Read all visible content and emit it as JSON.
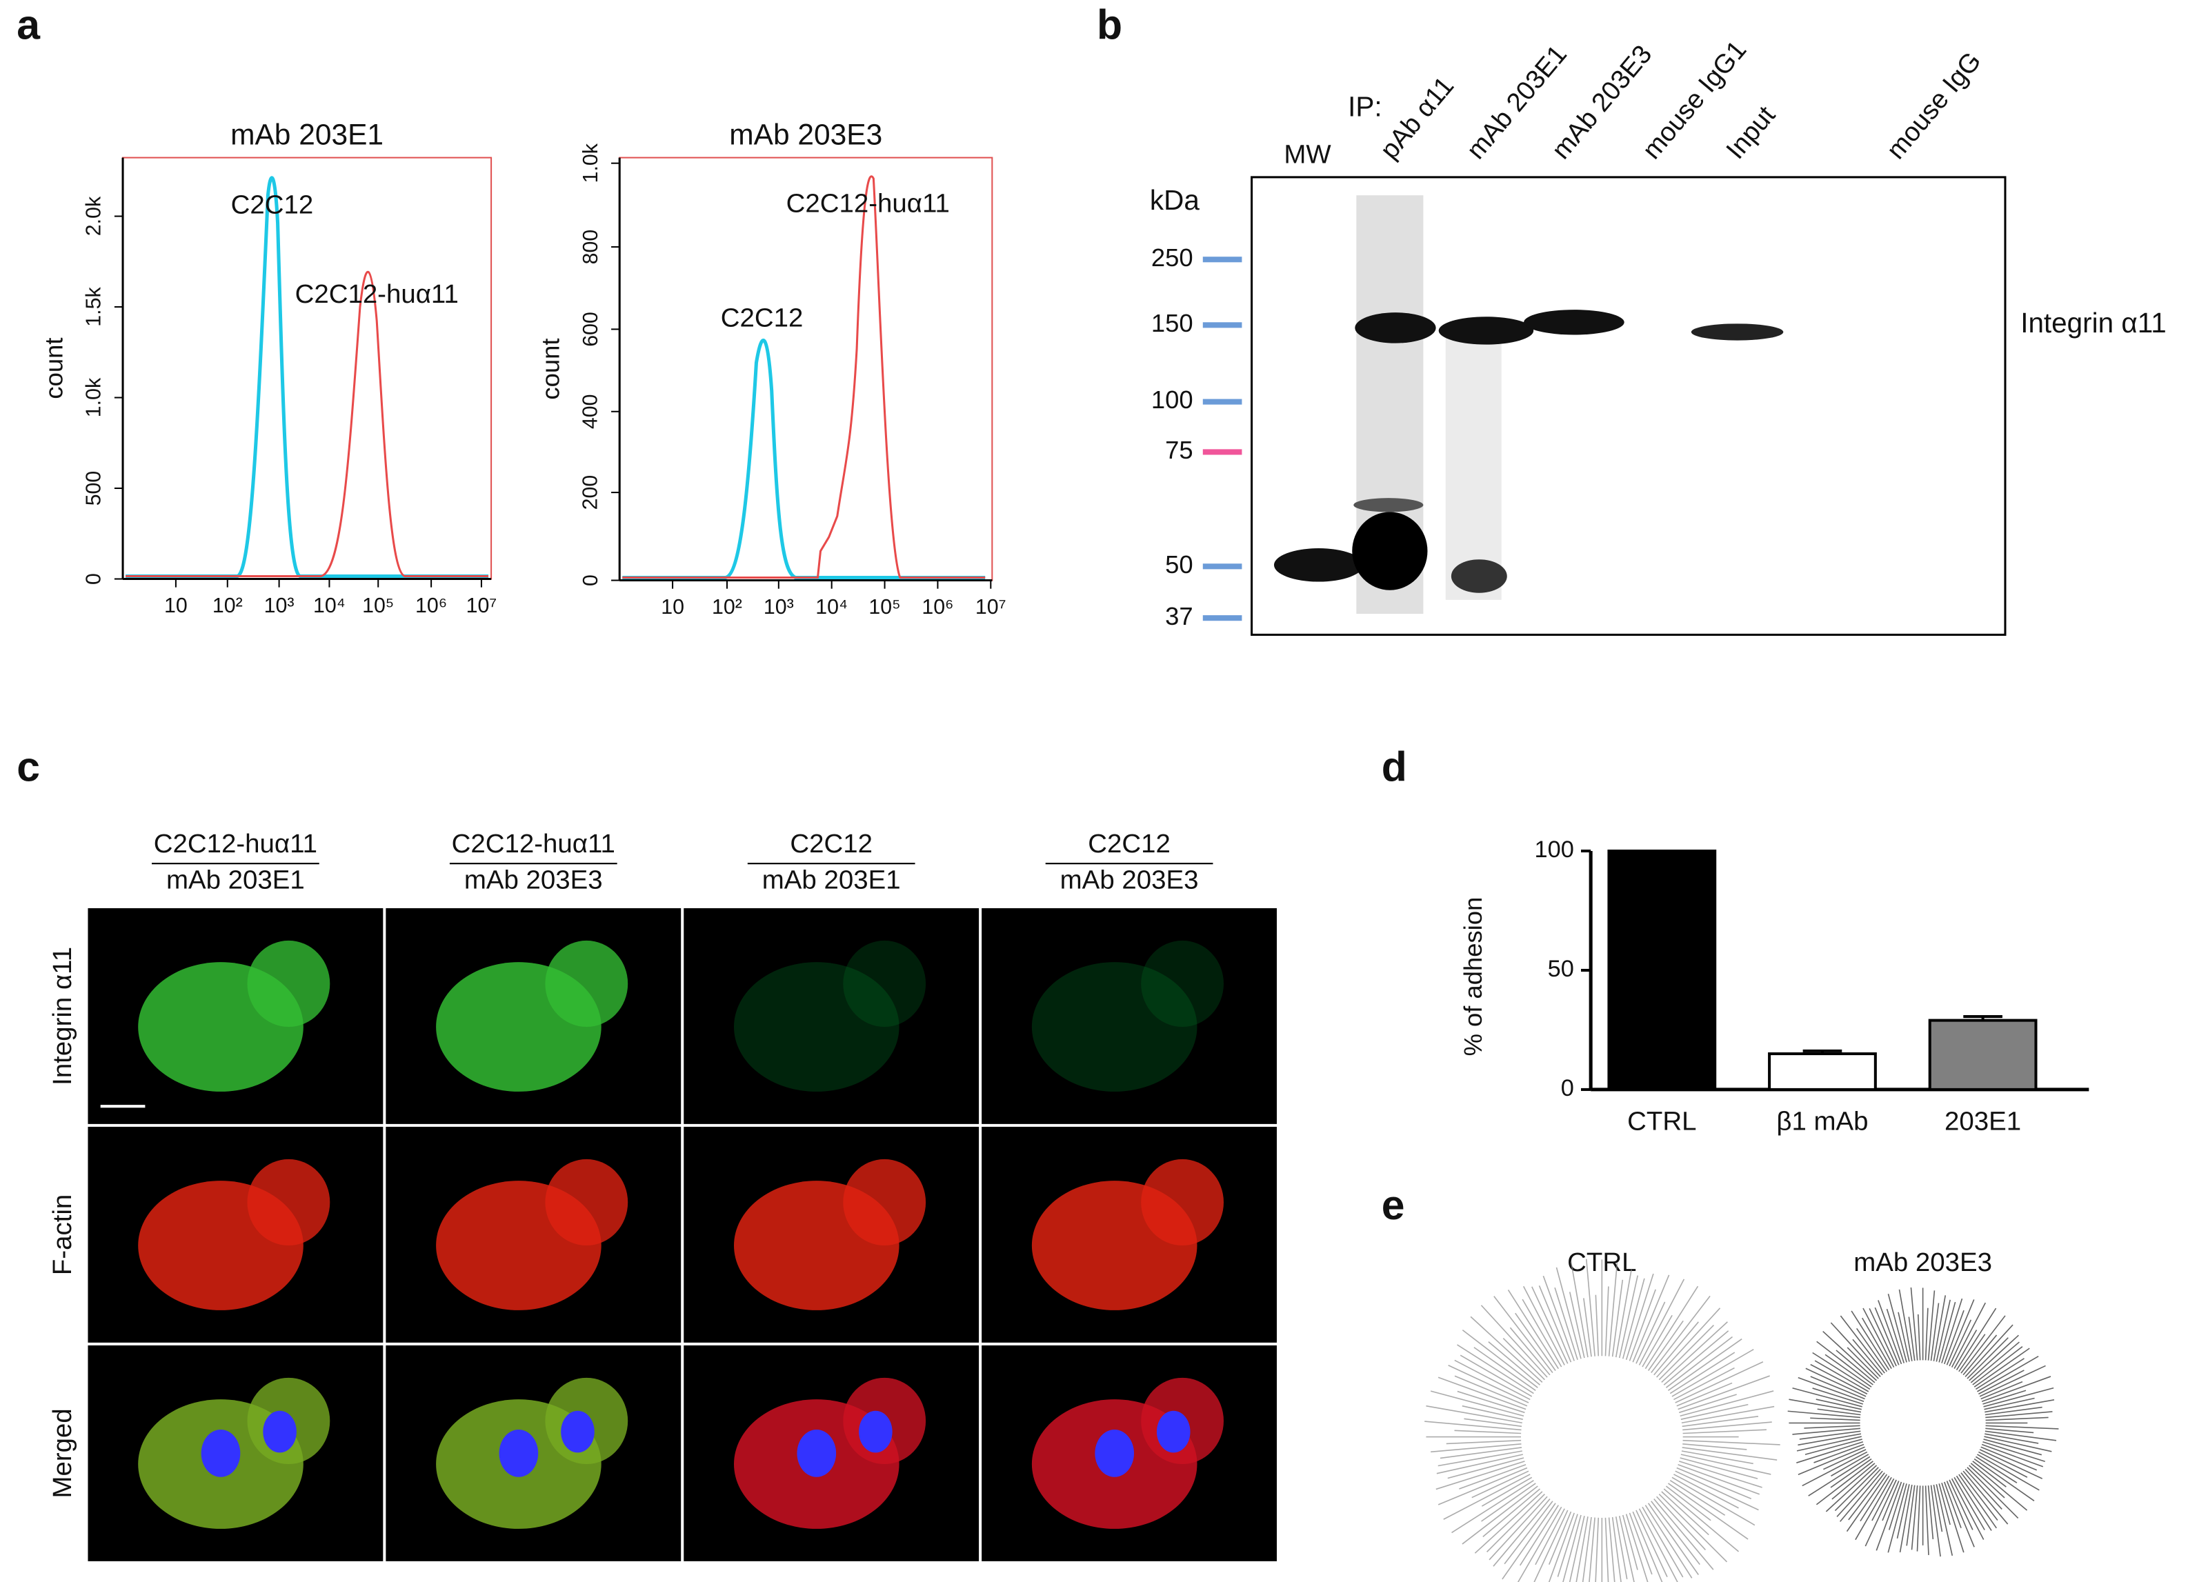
{
  "panels": {
    "a": {
      "label": "a",
      "plots": [
        {
          "title": "mAb 203E1",
          "ylabel": "count",
          "yticks": [
            "0",
            "500",
            "1.0k",
            "1.5k",
            "2.0k"
          ],
          "xticks": [
            "10",
            "10²",
            "10³",
            "10⁴",
            "10⁵",
            "10⁶",
            "10⁷"
          ],
          "annotations": [
            "C2C12",
            "C2C12-huα11"
          ]
        },
        {
          "title": "mAb 203E3",
          "ylabel": "count",
          "yticks": [
            "0",
            "200",
            "400",
            "600",
            "800",
            "1.0k"
          ],
          "xticks": [
            "10",
            "10²",
            "10³",
            "10⁴",
            "10⁵",
            "10⁶",
            "10⁷"
          ],
          "annotations": [
            "C2C12",
            "C2C12-huα11"
          ]
        }
      ]
    },
    "b": {
      "label": "b",
      "ip_label": "IP:",
      "lanes": [
        "MW",
        "pAb α11",
        "mAb 203E1",
        "mAb 203E3",
        "mouse IgG1",
        "Input",
        "mouse IgG"
      ],
      "unit": "kDa",
      "markers": [
        "250",
        "150",
        "100",
        "75",
        "50",
        "37"
      ],
      "band_label": "Integrin α11"
    },
    "c": {
      "label": "c",
      "columns": [
        {
          "top": "C2C12-huα11",
          "bottom": "mAb 203E1"
        },
        {
          "top": "C2C12-huα11",
          "bottom": "mAb 203E3"
        },
        {
          "top": "C2C12",
          "bottom": "mAb 203E1"
        },
        {
          "top": "C2C12",
          "bottom": "mAb 203E3"
        }
      ],
      "rows": [
        "Integrin α11",
        "F-actin",
        "Merged"
      ]
    },
    "d": {
      "label": "d"
    },
    "e": {
      "label": "e",
      "conditions": [
        "CTRL",
        "mAb 203E3"
      ]
    }
  },
  "chart_data": {
    "type": "bar",
    "ylabel": "% of adhesion",
    "categories": [
      "CTRL",
      "β1 mAb",
      "203E1"
    ],
    "values": [
      100,
      15,
      29
    ],
    "errors": [
      0,
      1.2,
      1.6
    ],
    "colors": [
      "#000000",
      "#ffffff",
      "#808080"
    ],
    "ylim": [
      0,
      100
    ],
    "yticks": [
      0,
      50,
      100
    ]
  }
}
